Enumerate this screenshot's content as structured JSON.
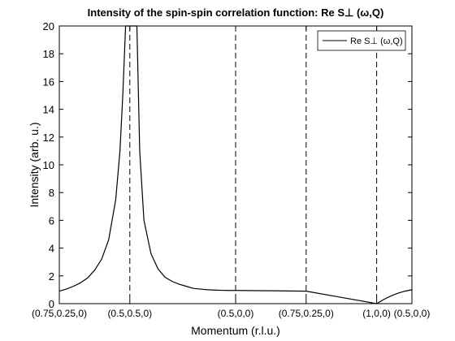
{
  "chart_data": {
    "type": "line",
    "title": "Intensity of the spin-spin correlation function: Re S⊥ (ω,Q)",
    "xlabel": "Momentum (r.l.u.)",
    "ylabel": "Intensity (arb. u.)",
    "ylim": [
      0,
      20
    ],
    "yticks": [
      0,
      2,
      4,
      6,
      8,
      10,
      12,
      14,
      16,
      18,
      20
    ],
    "xlim": [
      0,
      2.5
    ],
    "xtick_labels": [
      "(0.75,0.25,0)",
      "(0.5,0.5,0)",
      "(0.5,0,0)",
      "(0.75,0.25,0)",
      "(1,0,0)",
      "(0.5,0,0)"
    ],
    "xtick_positions": [
      0,
      0.5,
      1.25,
      1.75,
      2.25,
      2.5
    ],
    "vlines": [
      0.5,
      1.25,
      1.75,
      2.25
    ],
    "grid": false,
    "legend_position": "top-right",
    "series": [
      {
        "name": "Re S⊥ (ω,Q)",
        "color": "#000000",
        "x": [
          0,
          0.05,
          0.1,
          0.15,
          0.2,
          0.25,
          0.3,
          0.35,
          0.4,
          0.43,
          0.45,
          0.47,
          0.48,
          0.49,
          0.5,
          0.51,
          0.52,
          0.53,
          0.55,
          0.57,
          0.6,
          0.65,
          0.7,
          0.75,
          0.8,
          0.85,
          0.9,
          0.95,
          1.0,
          1.05,
          1.1,
          1.15,
          1.2,
          1.25,
          1.5,
          1.75,
          2.0,
          2.25,
          2.3,
          2.35,
          2.4,
          2.45,
          2.5
        ],
        "y": [
          0.9,
          1.05,
          1.25,
          1.5,
          1.85,
          2.4,
          3.2,
          4.6,
          7.5,
          11.0,
          15.0,
          20,
          20,
          20,
          20,
          20,
          20,
          20,
          20,
          11.0,
          6.0,
          3.6,
          2.5,
          1.9,
          1.6,
          1.4,
          1.25,
          1.1,
          1.05,
          1.0,
          0.98,
          0.96,
          0.95,
          0.95,
          0.93,
          0.9,
          0.45,
          0.0,
          0.3,
          0.55,
          0.75,
          0.9,
          1.0
        ]
      }
    ]
  }
}
